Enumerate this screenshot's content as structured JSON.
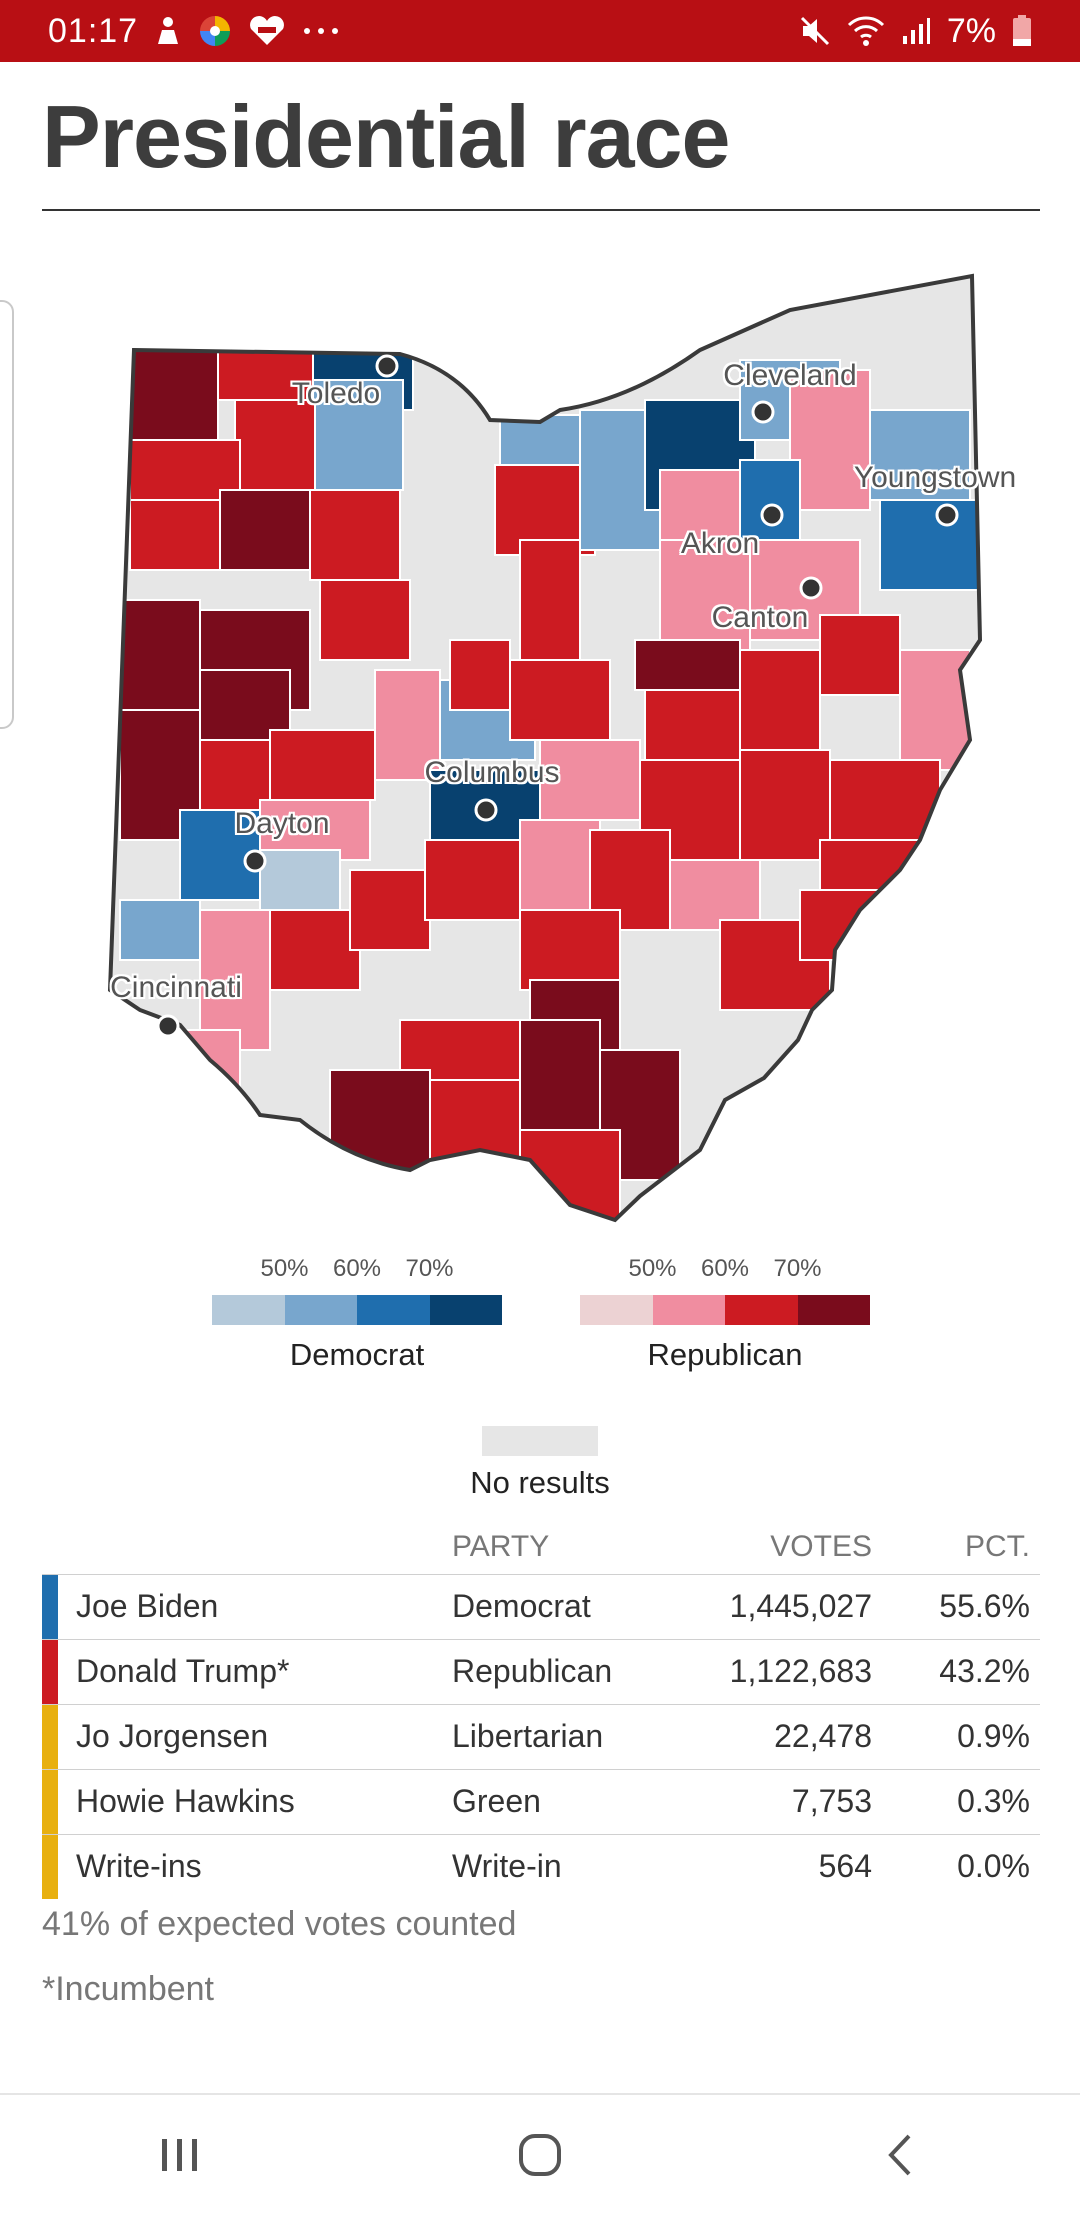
{
  "status_bar": {
    "time": "01:17",
    "battery": "7%",
    "icons": [
      "person-notification-icon",
      "app-color-icon",
      "lazada-icon",
      "more-icon",
      "mute-icon",
      "wifi-icon",
      "signal-icon",
      "battery-icon"
    ],
    "bg_color": "#b80f14"
  },
  "page": {
    "title": "Presidential race"
  },
  "map": {
    "cities": [
      {
        "name": "Toledo"
      },
      {
        "name": "Cleveland"
      },
      {
        "name": "Youngstown"
      },
      {
        "name": "Akron"
      },
      {
        "name": "Canton"
      },
      {
        "name": "Columbus"
      },
      {
        "name": "Dayton"
      },
      {
        "name": "Cincinnati"
      }
    ]
  },
  "legend": {
    "democrat": {
      "label": "Democrat",
      "ticks": [
        "50%",
        "60%",
        "70%"
      ],
      "colors": [
        "#b4c9da",
        "#78a6cd",
        "#1f6eae",
        "#08416f"
      ]
    },
    "republican": {
      "label": "Republican",
      "ticks": [
        "50%",
        "60%",
        "70%"
      ],
      "colors": [
        "#ecd2d3",
        "#f08da0",
        "#cc1b22",
        "#7a0c1c"
      ]
    },
    "no_results": {
      "label": "No results",
      "color": "#e6e6e6"
    }
  },
  "results": {
    "headers": {
      "party": "PARTY",
      "votes": "VOTES",
      "pct": "PCT."
    },
    "rows": [
      {
        "name": "Joe Biden",
        "party": "Democrat",
        "votes": "1,445,027",
        "pct": "55.6%",
        "color": "#1f6eae"
      },
      {
        "name": "Donald Trump*",
        "party": "Republican",
        "votes": "1,122,683",
        "pct": "43.2%",
        "color": "#cc1b22"
      },
      {
        "name": "Jo Jorgensen",
        "party": "Libertarian",
        "votes": "22,478",
        "pct": "0.9%",
        "color": "#e8b00f"
      },
      {
        "name": "Howie Hawkins",
        "party": "Green",
        "votes": "7,753",
        "pct": "0.3%",
        "color": "#e8b00f"
      },
      {
        "name": "Write-ins",
        "party": "Write-in",
        "votes": "564",
        "pct": "0.0%",
        "color": "#e8b00f"
      }
    ],
    "expected_note": "41% of expected votes counted",
    "incumbent_note": "*Incumbent"
  },
  "nav_bar": {
    "buttons": [
      "recent-apps-icon",
      "home-icon",
      "back-icon"
    ]
  }
}
